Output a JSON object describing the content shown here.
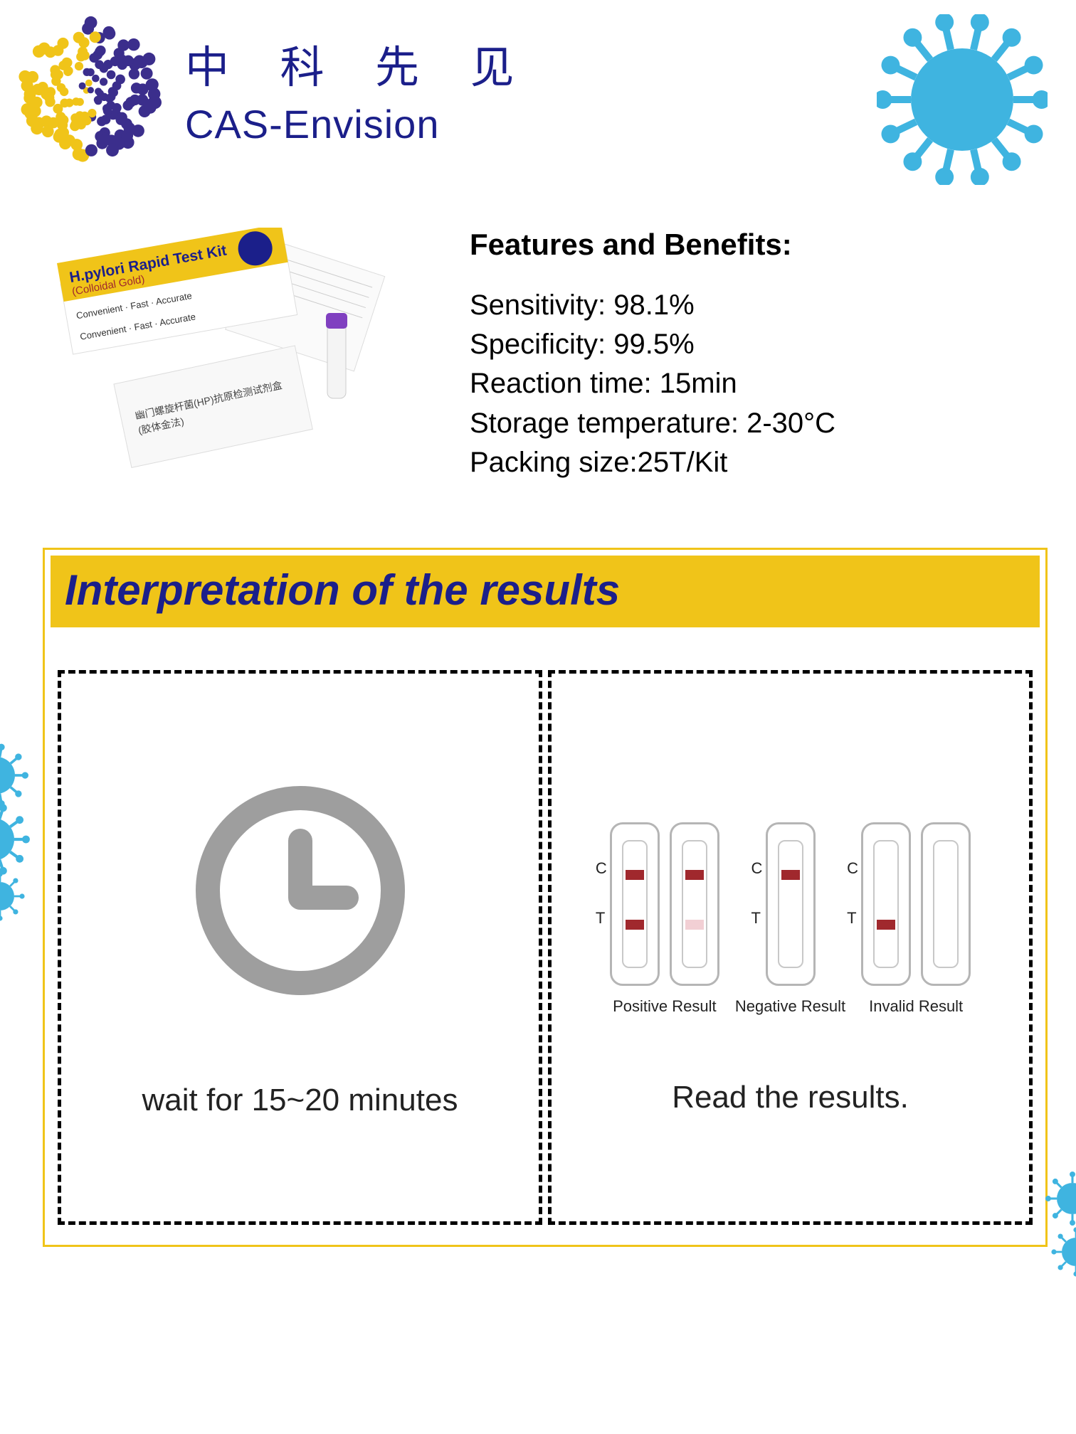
{
  "brand": {
    "cn": "中 科 先 见",
    "en": "CAS-Envision",
    "color": "#1b1f8a"
  },
  "logo_sphere": {
    "dot_colors": [
      "#f0c419",
      "#3b2e8c"
    ],
    "dot_size": 9
  },
  "virus_color": "#3fb4e0",
  "product_box": {
    "title": "H.pylori Rapid Test Kit",
    "subtitle": "(Colloidal Gold)",
    "tagline": "Convenient · Fast · Accurate",
    "box_color": "#f0c419",
    "accent_circle": "#1b1f8a",
    "cn_pouch_line1": "幽门螺旋杆菌(HP)抗原检测试剂盒",
    "cn_pouch_line2": "(胶体金法)"
  },
  "features": {
    "heading": "Features and Benefits:",
    "lines": [
      "Sensitivity: 98.1%",
      "Specificity: 99.5%",
      "Reaction time: 15min",
      "Storage temperature:  2-30°C",
      "Packing size:25T/Kit"
    ]
  },
  "interpretation": {
    "title": "Interpretation of the results",
    "banner_color": "#f0c419",
    "title_color": "#1b1f8a",
    "panel_left_caption": "wait for 15~20 minutes",
    "panel_right_caption": "Read the results.",
    "clock_color": "#9e9e9e",
    "strip": {
      "border_color": "#b5b5b5",
      "strong_line": "#a0282d",
      "faint_line": "#f2cfd4",
      "labels": {
        "c": "C",
        "t": "T"
      }
    },
    "results": [
      {
        "label": "Positive Result",
        "strips": [
          {
            "c": "#a0282d",
            "t": "#a0282d"
          },
          {
            "c": "#a0282d",
            "t": "#f2cfd4"
          }
        ]
      },
      {
        "label": "Negative Result",
        "strips": [
          {
            "c": "#a0282d",
            "t": null
          }
        ]
      },
      {
        "label": "Invalid Result",
        "strips": [
          {
            "c": null,
            "t": "#a0282d"
          },
          {
            "c": null,
            "t": null
          }
        ]
      }
    ]
  }
}
